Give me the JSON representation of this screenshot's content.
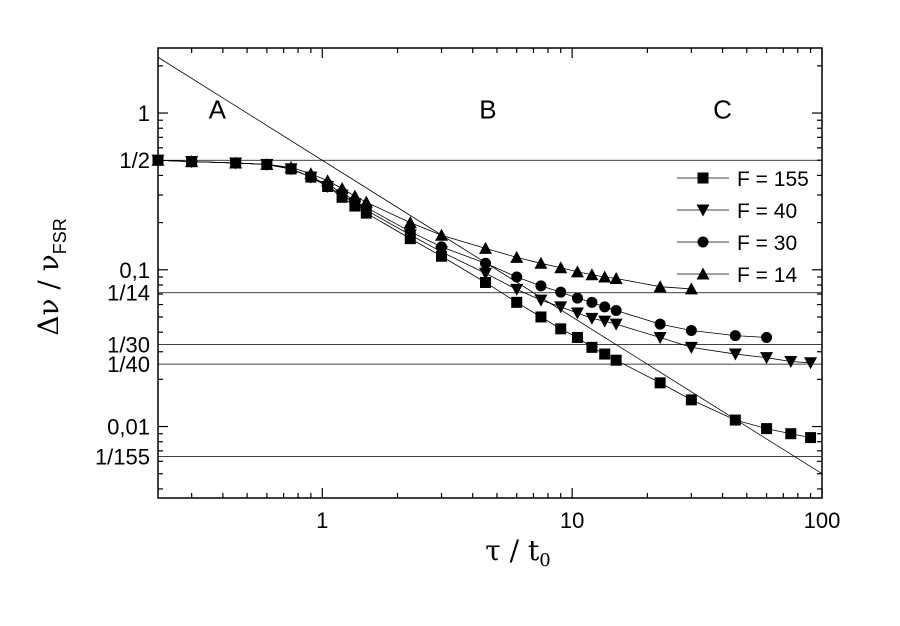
{
  "chart_data": {
    "type": "scatter",
    "title": "",
    "xlabel": "τ / t0",
    "ylabel": "Δν / νFSR",
    "xscale": "log",
    "yscale": "log",
    "xlim": [
      0.22,
      100
    ],
    "ylim": [
      0.0035,
      2.6
    ],
    "x_ticks": [
      {
        "value": 1,
        "label": "1"
      },
      {
        "value": 10,
        "label": "10"
      },
      {
        "value": 100,
        "label": "100"
      }
    ],
    "y_ticks": [
      {
        "value": 1,
        "label": "1"
      },
      {
        "value": 0.5,
        "label": "1/2"
      },
      {
        "value": 0.1,
        "label": "0,1"
      },
      {
        "value": 0.0714,
        "label": "1/14"
      },
      {
        "value": 0.0333,
        "label": "1/30"
      },
      {
        "value": 0.025,
        "label": "1/40"
      },
      {
        "value": 0.01,
        "label": "0,01"
      },
      {
        "value": 0.00645,
        "label": "1/155"
      }
    ],
    "horizontal_lines": [
      0.5,
      0.0714,
      0.0333,
      0.025,
      0.00645
    ],
    "reference_line": {
      "description": "1/(2τ)",
      "x": [
        0.22,
        100
      ],
      "y": [
        2.27,
        0.005
      ]
    },
    "regions": [
      {
        "label": "A",
        "x": 0.38,
        "y": 0.92
      },
      {
        "label": "B",
        "x": 4.6,
        "y": 0.92
      },
      {
        "label": "C",
        "x": 40,
        "y": 0.92
      }
    ],
    "legend": "right",
    "series": [
      {
        "name": "F = 155",
        "marker": "square",
        "x": [
          0.22,
          0.3,
          0.45,
          0.6,
          0.75,
          0.9,
          1.05,
          1.2,
          1.35,
          1.5,
          2.25,
          3,
          4.5,
          6,
          7.5,
          9,
          10.5,
          12,
          13.5,
          15,
          22.5,
          30,
          45,
          60,
          75,
          90
        ],
        "y": [
          0.5,
          0.49,
          0.48,
          0.47,
          0.44,
          0.39,
          0.34,
          0.29,
          0.255,
          0.23,
          0.158,
          0.122,
          0.083,
          0.062,
          0.05,
          0.042,
          0.037,
          0.032,
          0.029,
          0.0265,
          0.019,
          0.0148,
          0.011,
          0.0097,
          0.009,
          0.0085
        ]
      },
      {
        "name": "F = 40",
        "marker": "triangle-down",
        "x": [
          0.22,
          0.3,
          0.45,
          0.6,
          0.75,
          0.9,
          1.05,
          1.2,
          1.35,
          1.5,
          2.25,
          3,
          4.5,
          6,
          7.5,
          9,
          10.5,
          12,
          13.5,
          15,
          22.5,
          30,
          45,
          60,
          75,
          90
        ],
        "y": [
          0.5,
          0.49,
          0.48,
          0.47,
          0.44,
          0.39,
          0.34,
          0.3,
          0.265,
          0.24,
          0.167,
          0.13,
          0.095,
          0.075,
          0.064,
          0.058,
          0.053,
          0.049,
          0.047,
          0.045,
          0.037,
          0.032,
          0.029,
          0.0275,
          0.026,
          0.0255
        ]
      },
      {
        "name": "F = 30",
        "marker": "circle",
        "x": [
          0.22,
          0.3,
          0.45,
          0.6,
          0.75,
          0.9,
          1.05,
          1.2,
          1.35,
          1.5,
          2.25,
          3,
          4.5,
          6,
          7.5,
          9,
          10.5,
          12,
          13.5,
          15,
          22.5,
          30,
          45,
          60
        ],
        "y": [
          0.5,
          0.49,
          0.48,
          0.47,
          0.44,
          0.39,
          0.35,
          0.31,
          0.275,
          0.25,
          0.175,
          0.14,
          0.11,
          0.09,
          0.079,
          0.072,
          0.066,
          0.062,
          0.058,
          0.055,
          0.045,
          0.041,
          0.038,
          0.037
        ]
      },
      {
        "name": "F = 14",
        "marker": "triangle-up",
        "x": [
          0.22,
          0.3,
          0.45,
          0.6,
          0.75,
          0.9,
          1.05,
          1.2,
          1.35,
          1.5,
          2.25,
          3,
          4.5,
          6,
          7.5,
          9,
          10.5,
          12,
          13.5,
          15,
          22.5,
          30
        ],
        "y": [
          0.5,
          0.49,
          0.48,
          0.47,
          0.45,
          0.41,
          0.37,
          0.33,
          0.295,
          0.27,
          0.2,
          0.166,
          0.137,
          0.12,
          0.11,
          0.103,
          0.097,
          0.093,
          0.09,
          0.088,
          0.078,
          0.0755
        ]
      }
    ]
  }
}
